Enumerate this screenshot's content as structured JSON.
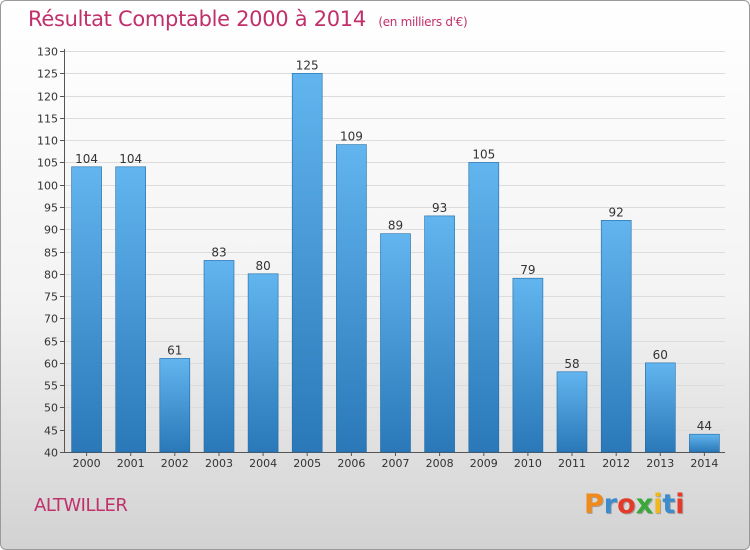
{
  "title": {
    "main": "Résultat Comptable 2000 à 2014",
    "unit": "(en milliers d'€)"
  },
  "commune": "ALTWILLER",
  "logo": {
    "text": "Proxiti",
    "letter_colors": [
      "#f08a1c",
      "#3a8ccc",
      "#e33a2a",
      "#3aa83a",
      "#f0b81c",
      "#3a8ccc",
      "#e33a2a"
    ]
  },
  "colors": {
    "title": "#c0306a",
    "bar_top": "#62b5ef",
    "bar_bottom": "#2a78b8"
  },
  "chart_data": {
    "type": "bar",
    "title": "Résultat Comptable 2000 à 2014",
    "subtitle": "(en milliers d'€)",
    "xlabel": "",
    "ylabel": "",
    "ylim": [
      40,
      130
    ],
    "ytick_step": 5,
    "grid": true,
    "categories": [
      "2000",
      "2001",
      "2002",
      "2003",
      "2004",
      "2005",
      "2006",
      "2007",
      "2008",
      "2009",
      "2010",
      "2011",
      "2012",
      "2013",
      "2014"
    ],
    "values": [
      104,
      104,
      61,
      83,
      80,
      125,
      109,
      89,
      93,
      105,
      79,
      58,
      92,
      60,
      44
    ]
  }
}
